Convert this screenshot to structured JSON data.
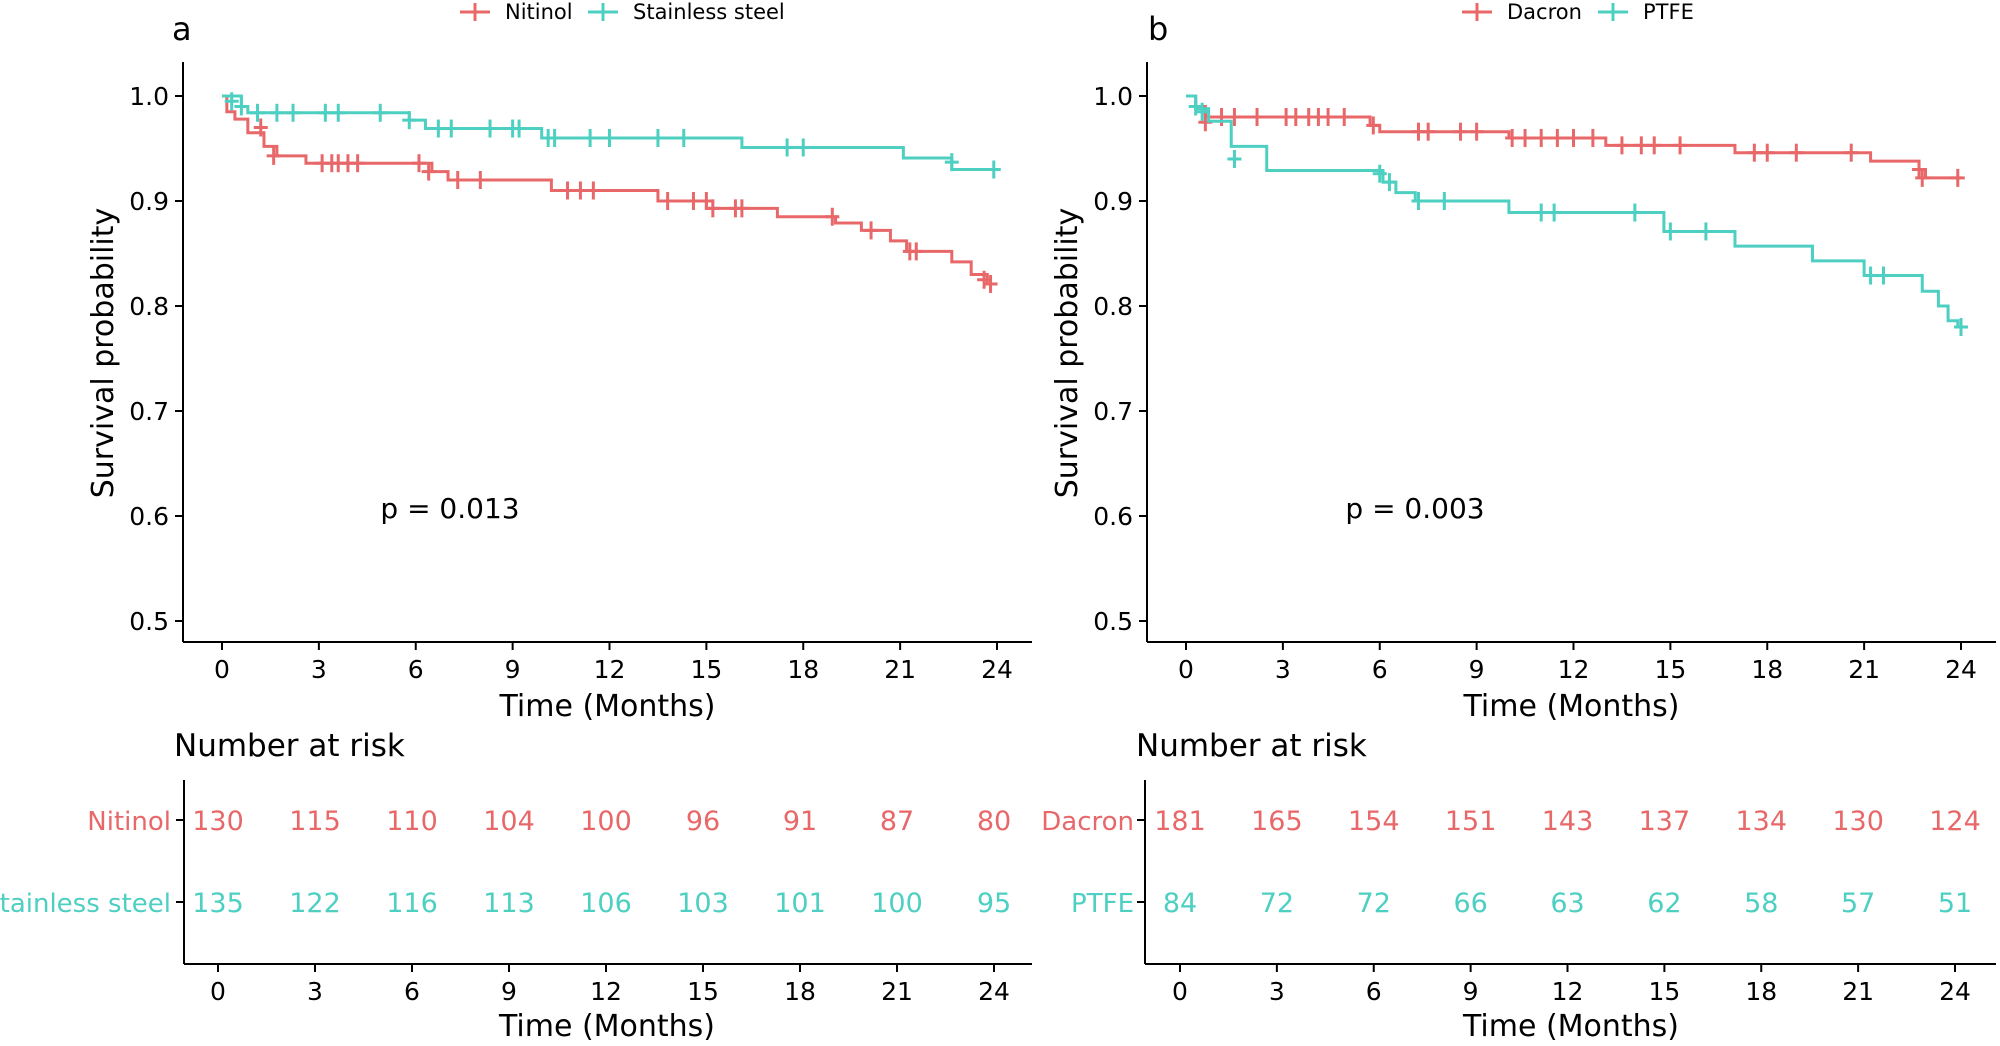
{
  "colors": {
    "series1": "#E8686A",
    "series2": "#4DCFC2"
  },
  "chart_data": [
    {
      "type": "line",
      "panel_label": "a",
      "xlabel": "Time (Months)",
      "ylabel": "Survival probability",
      "xlim": [
        0,
        24
      ],
      "ylim": [
        0.5,
        1.0
      ],
      "xticks": [
        0,
        3,
        6,
        9,
        12,
        15,
        18,
        21,
        24
      ],
      "yticks": [
        "0.5",
        "0.6",
        "0.7",
        "0.8",
        "0.9",
        "1.0"
      ],
      "pvalue": "p = 0.013",
      "series": [
        {
          "name": "Nitinol",
          "steps": [
            [
              0,
              1.0
            ],
            [
              0.15,
              0.985
            ],
            [
              0.4,
              0.978
            ],
            [
              0.8,
              0.965
            ],
            [
              1.3,
              0.952
            ],
            [
              1.7,
              0.943
            ],
            [
              2.6,
              0.936
            ],
            [
              6.5,
              0.928
            ],
            [
              7.0,
              0.92
            ],
            [
              10.2,
              0.91
            ],
            [
              13.5,
              0.9
            ],
            [
              15.0,
              0.893
            ],
            [
              17.2,
              0.885
            ],
            [
              19.0,
              0.879
            ],
            [
              19.8,
              0.872
            ],
            [
              20.7,
              0.862
            ],
            [
              21.2,
              0.852
            ],
            [
              22.6,
              0.842
            ],
            [
              23.2,
              0.83
            ],
            [
              23.7,
              0.821
            ]
          ],
          "end": 24,
          "censors": [
            [
              1.2,
              0.97
            ],
            [
              1.6,
              0.943
            ],
            [
              3.1,
              0.936
            ],
            [
              3.4,
              0.936
            ],
            [
              3.6,
              0.936
            ],
            [
              3.9,
              0.936
            ],
            [
              4.2,
              0.936
            ],
            [
              6.1,
              0.936
            ],
            [
              6.4,
              0.928
            ],
            [
              7.3,
              0.92
            ],
            [
              8.0,
              0.92
            ],
            [
              10.7,
              0.91
            ],
            [
              11.1,
              0.91
            ],
            [
              11.5,
              0.91
            ],
            [
              13.8,
              0.9
            ],
            [
              14.6,
              0.9
            ],
            [
              15.0,
              0.9
            ],
            [
              15.2,
              0.893
            ],
            [
              15.9,
              0.893
            ],
            [
              16.1,
              0.893
            ],
            [
              18.9,
              0.885
            ],
            [
              20.1,
              0.872
            ],
            [
              21.3,
              0.852
            ],
            [
              21.5,
              0.852
            ],
            [
              23.6,
              0.825
            ],
            [
              23.8,
              0.821
            ]
          ]
        },
        {
          "name": "Stainless steel",
          "steps": [
            [
              0,
              1.0
            ],
            [
              0.6,
              0.99
            ],
            [
              0.8,
              0.984
            ],
            [
              5.8,
              0.977
            ],
            [
              6.3,
              0.969
            ],
            [
              9.9,
              0.96
            ],
            [
              16.1,
              0.951
            ],
            [
              21.1,
              0.941
            ],
            [
              22.6,
              0.93
            ]
          ],
          "end": 24,
          "censors": [
            [
              0.3,
              0.995
            ],
            [
              0.6,
              0.99
            ],
            [
              1.1,
              0.984
            ],
            [
              1.7,
              0.984
            ],
            [
              2.2,
              0.984
            ],
            [
              3.2,
              0.984
            ],
            [
              3.6,
              0.984
            ],
            [
              4.9,
              0.984
            ],
            [
              5.8,
              0.977
            ],
            [
              6.7,
              0.969
            ],
            [
              7.1,
              0.969
            ],
            [
              8.3,
              0.969
            ],
            [
              9.0,
              0.969
            ],
            [
              9.2,
              0.969
            ],
            [
              10.1,
              0.96
            ],
            [
              10.3,
              0.96
            ],
            [
              11.4,
              0.96
            ],
            [
              12.0,
              0.96
            ],
            [
              13.5,
              0.96
            ],
            [
              14.3,
              0.96
            ],
            [
              17.5,
              0.951
            ],
            [
              18.0,
              0.951
            ],
            [
              22.6,
              0.937
            ],
            [
              23.9,
              0.93
            ]
          ]
        }
      ],
      "risk_table": {
        "title": "Number at risk",
        "xlabel": "Time (Months)",
        "xticks": [
          0,
          3,
          6,
          9,
          12,
          15,
          18,
          21,
          24
        ],
        "rows": [
          {
            "group": "Nitinol",
            "values": [
              130,
              115,
              110,
              104,
              100,
              96,
              91,
              87,
              80
            ]
          },
          {
            "group": "Stainless steel",
            "values": [
              135,
              122,
              116,
              113,
              106,
              103,
              101,
              100,
              95
            ]
          }
        ]
      }
    },
    {
      "type": "line",
      "panel_label": "b",
      "xlabel": "Time (Months)",
      "ylabel": "Survival probability",
      "xlim": [
        0,
        24
      ],
      "ylim": [
        0.5,
        1.0
      ],
      "xticks": [
        0,
        3,
        6,
        9,
        12,
        15,
        18,
        21,
        24
      ],
      "yticks": [
        "0.5",
        "0.6",
        "0.7",
        "0.8",
        "0.9",
        "1.0"
      ],
      "pvalue": "p = 0.003",
      "series": [
        {
          "name": "Dacron",
          "steps": [
            [
              0,
              1.0
            ],
            [
              0.3,
              0.99
            ],
            [
              0.6,
              0.98
            ],
            [
              5.7,
              0.972
            ],
            [
              6.0,
              0.966
            ],
            [
              10.0,
              0.96
            ],
            [
              13.0,
              0.953
            ],
            [
              17.0,
              0.946
            ],
            [
              21.2,
              0.938
            ],
            [
              22.7,
              0.93
            ],
            [
              22.9,
              0.922
            ]
          ],
          "end": 24,
          "censors": [
            [
              0.6,
              0.975
            ],
            [
              1.1,
              0.98
            ],
            [
              1.5,
              0.98
            ],
            [
              2.2,
              0.98
            ],
            [
              3.1,
              0.98
            ],
            [
              3.4,
              0.98
            ],
            [
              3.8,
              0.98
            ],
            [
              4.1,
              0.98
            ],
            [
              4.4,
              0.98
            ],
            [
              4.9,
              0.98
            ],
            [
              5.8,
              0.972
            ],
            [
              7.2,
              0.966
            ],
            [
              7.5,
              0.966
            ],
            [
              8.5,
              0.966
            ],
            [
              9.0,
              0.966
            ],
            [
              10.1,
              0.96
            ],
            [
              10.5,
              0.96
            ],
            [
              11.0,
              0.96
            ],
            [
              11.5,
              0.96
            ],
            [
              12.0,
              0.96
            ],
            [
              12.6,
              0.96
            ],
            [
              13.5,
              0.953
            ],
            [
              14.1,
              0.953
            ],
            [
              14.5,
              0.953
            ],
            [
              15.3,
              0.953
            ],
            [
              17.6,
              0.946
            ],
            [
              18.0,
              0.946
            ],
            [
              18.9,
              0.946
            ],
            [
              20.6,
              0.946
            ],
            [
              22.7,
              0.93
            ],
            [
              22.8,
              0.922
            ],
            [
              23.9,
              0.922
            ]
          ]
        },
        {
          "name": "PTFE",
          "steps": [
            [
              0,
              1.0
            ],
            [
              0.3,
              0.988
            ],
            [
              0.7,
              0.976
            ],
            [
              1.4,
              0.952
            ],
            [
              2.5,
              0.929
            ],
            [
              6.1,
              0.918
            ],
            [
              6.5,
              0.908
            ],
            [
              7.1,
              0.9
            ],
            [
              10.0,
              0.889
            ],
            [
              14.8,
              0.871
            ],
            [
              17.0,
              0.857
            ],
            [
              19.4,
              0.843
            ],
            [
              21.0,
              0.829
            ],
            [
              22.8,
              0.814
            ],
            [
              23.3,
              0.8
            ],
            [
              23.6,
              0.786
            ],
            [
              23.9,
              0.78
            ]
          ],
          "end": 24,
          "censors": [
            [
              0.3,
              0.99
            ],
            [
              0.5,
              0.985
            ],
            [
              1.5,
              0.94
            ],
            [
              6.0,
              0.926
            ],
            [
              6.3,
              0.918
            ],
            [
              7.2,
              0.9
            ],
            [
              8.0,
              0.9
            ],
            [
              11.0,
              0.889
            ],
            [
              11.4,
              0.889
            ],
            [
              13.9,
              0.889
            ],
            [
              15.0,
              0.871
            ],
            [
              16.1,
              0.871
            ],
            [
              21.2,
              0.829
            ],
            [
              21.6,
              0.829
            ],
            [
              24.0,
              0.78
            ]
          ]
        }
      ],
      "risk_table": {
        "title": "Number at risk",
        "xlabel": "Time (Months)",
        "xticks": [
          0,
          3,
          6,
          9,
          12,
          15,
          18,
          21,
          24
        ],
        "rows": [
          {
            "group": "Dacron",
            "values": [
              181,
              165,
              154,
              151,
              143,
              137,
              134,
              130,
              124
            ]
          },
          {
            "group": "PTFE",
            "values": [
              84,
              72,
              72,
              66,
              63,
              62,
              58,
              57,
              51
            ]
          }
        ]
      }
    }
  ]
}
